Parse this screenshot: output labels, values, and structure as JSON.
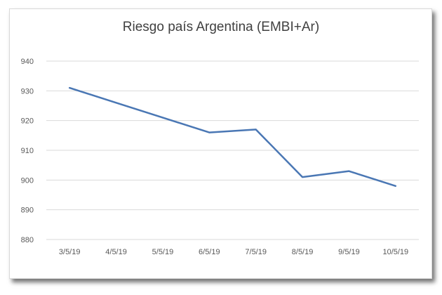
{
  "chart_data": {
    "type": "line",
    "title": "Riesgo país Argentina (EMBI+Ar)",
    "xlabel": "",
    "ylabel": "",
    "categories": [
      "3/5/19",
      "4/5/19",
      "5/5/19",
      "6/5/19",
      "7/5/19",
      "8/5/19",
      "9/5/19",
      "10/5/19"
    ],
    "series": [
      {
        "values": [
          931,
          926,
          921,
          916,
          917,
          901,
          903,
          898
        ]
      }
    ],
    "ylim": [
      880,
      940
    ],
    "yticks": [
      "880",
      "890",
      "900",
      "910",
      "920",
      "930",
      "940"
    ],
    "grid": true,
    "legend": "none",
    "line_color": "#4a77b4"
  }
}
